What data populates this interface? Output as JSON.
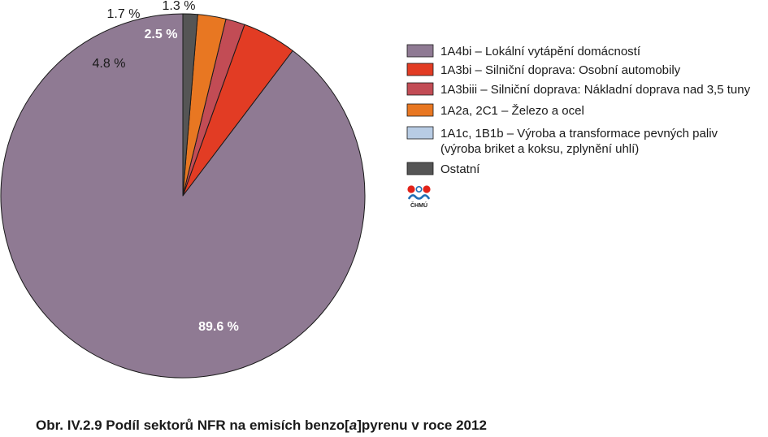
{
  "chart_data": {
    "type": "pie",
    "title": "",
    "slices": [
      {
        "label": "1A4bi  – Lokální vytápění domácností",
        "value": 89.6,
        "value_label": "89.6 %",
        "color": "#8f7a93",
        "label_bold": true,
        "label_color": "#ffffff"
      },
      {
        "label": "1A3bi – Silniční doprava: Osobní automobily",
        "value": 4.8,
        "value_label": "4.8 %",
        "color": "#e23c24",
        "label_bold": false,
        "label_color": "#1a1a1a"
      },
      {
        "label": "1A3biii – Silniční doprava: Nákladní doprava nad 3,5 tuny",
        "value": 1.7,
        "value_label": "1.7 %",
        "color": "#c24c55",
        "label_bold": false,
        "label_color": "#1a1a1a"
      },
      {
        "label": "1A2a, 2C1 – Železo a ocel",
        "value": 2.5,
        "value_label": "2.5 %",
        "color": "#e87722",
        "label_bold": true,
        "label_color": "#ffffff"
      },
      {
        "label": "1A1c, 1B1b – Výroba a transformace pevných paliv (výroba briket a koksu, zplynění uhlí)",
        "value": 0,
        "value_label": "",
        "color": "#b8cce4",
        "label_bold": false,
        "label_color": "#1a1a1a"
      },
      {
        "label": "Ostatní",
        "value": 1.3,
        "value_label": "1.3 %",
        "color": "#555555",
        "label_bold": false,
        "label_color": "#1a1a1a"
      }
    ],
    "legend": {
      "placement": "right",
      "entries": [
        [
          "1A4bi  – Lokální vytápění domácností"
        ],
        [
          "1A3bi – Silniční doprava: Osobní automobily"
        ],
        [
          "1A3biii – Silniční doprava: Nákladní doprava nad 3,5 tuny"
        ],
        [
          "1A2a, 2C1 – Železo a ocel"
        ],
        [
          "1A1c, 1B1b – Výroba a transformace pevných paliv",
          "(výroba briket a koksu, zplynění uhlí)"
        ],
        [
          "Ostatní"
        ]
      ]
    }
  },
  "logo": {
    "text": "ČHMÚ",
    "colors": {
      "red": "#e2231a",
      "blue": "#1f6fb5"
    }
  },
  "caption": {
    "prefix": "Obr. IV.2.9  Podíl sektorů NFR na emisích benzo[",
    "italic": "a",
    "suffix": "]pyrenu v roce 2012"
  }
}
